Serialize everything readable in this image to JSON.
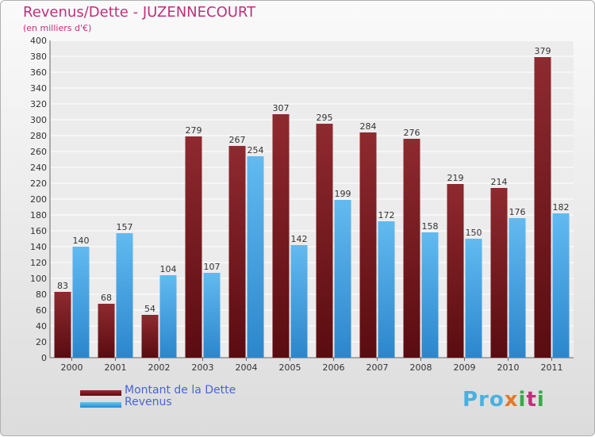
{
  "chart_data": {
    "type": "bar",
    "title": "Revenus/Dette - JUZENNECOURT",
    "subtitle": "(en milliers d'€)",
    "categories": [
      "2000",
      "2001",
      "2002",
      "2003",
      "2004",
      "2005",
      "2006",
      "2007",
      "2008",
      "2009",
      "2010",
      "2011"
    ],
    "series": [
      {
        "name": "Montant de la Dette",
        "values": [
          83,
          68,
          54,
          279,
          267,
          307,
          295,
          284,
          276,
          219,
          214,
          379
        ],
        "color": "#7a1a1e"
      },
      {
        "name": "Revenus",
        "values": [
          140,
          157,
          104,
          107,
          254,
          142,
          199,
          172,
          158,
          150,
          176,
          182
        ],
        "color": "#4aa6e8"
      }
    ],
    "ylim": [
      0,
      400
    ],
    "ytick_step": 20,
    "grid": true,
    "legend_position": "bottom-left"
  },
  "logo": {
    "p1": "Pro",
    "p2": "x",
    "p3": "i",
    "p4": "t",
    "p5": "i"
  }
}
